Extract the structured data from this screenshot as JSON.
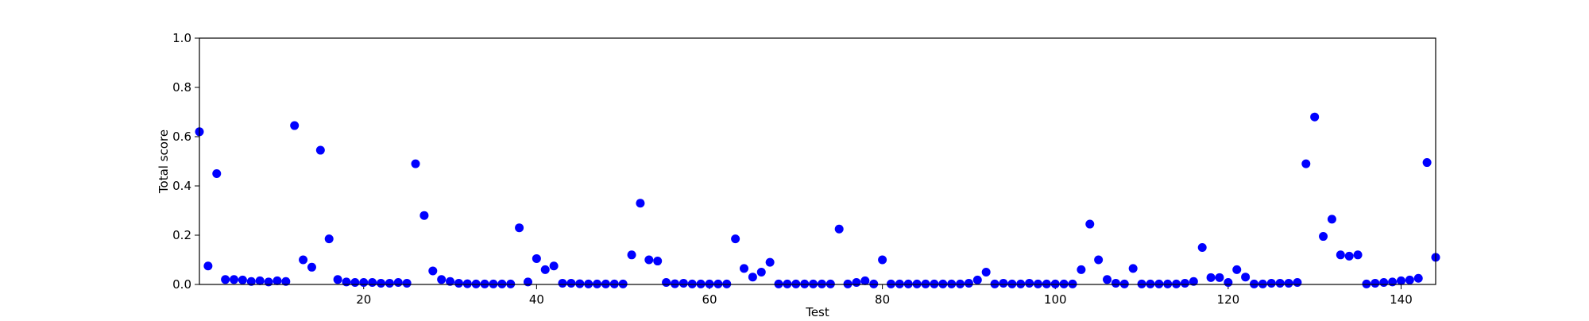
{
  "chart_data": {
    "type": "scatter",
    "title": "",
    "xlabel": "Test",
    "ylabel": "Total score",
    "xlim": [
      1,
      144
    ],
    "ylim": [
      0,
      1.0
    ],
    "xticks": [
      20,
      40,
      60,
      80,
      100,
      120,
      140
    ],
    "xtick_labels": [
      "20",
      "40",
      "60",
      "80",
      "100",
      "120",
      "140"
    ],
    "yticks": [
      0,
      0.2,
      0.4,
      0.6,
      0.8,
      1.0
    ],
    "ytick_labels": [
      "0.0",
      "0.2",
      "0.4",
      "0.6",
      "0.8",
      "1.0"
    ],
    "grid": false,
    "marker_color": "#0000ff",
    "series": [
      {
        "x": [
          1,
          2,
          3,
          4,
          5,
          6,
          7,
          8,
          9,
          10,
          11,
          12,
          13,
          14,
          15,
          16,
          17,
          18,
          19,
          20,
          21,
          22,
          23,
          24,
          25,
          26,
          27,
          28,
          29,
          30,
          31,
          32,
          33,
          34,
          35,
          36,
          37,
          38,
          39,
          40,
          41,
          42,
          43,
          44,
          45,
          46,
          47,
          48,
          49,
          50,
          51,
          52,
          53,
          54,
          55,
          56,
          57,
          58,
          59,
          60,
          61,
          62,
          63,
          64,
          65,
          66,
          67,
          68,
          69,
          70,
          71,
          72,
          73,
          74,
          75,
          76,
          77,
          78,
          79,
          80,
          81,
          82,
          83,
          84,
          85,
          86,
          87,
          88,
          89,
          90,
          91,
          92,
          93,
          94,
          95,
          96,
          97,
          98,
          99,
          100,
          101,
          102,
          103,
          104,
          105,
          106,
          107,
          108,
          109,
          110,
          111,
          112,
          113,
          114,
          115,
          116,
          117,
          118,
          119,
          120,
          121,
          122,
          123,
          124,
          125,
          126,
          127,
          128,
          129,
          130,
          131,
          132,
          133,
          134,
          135,
          136,
          137,
          138,
          139,
          140,
          141,
          142,
          143,
          144
        ],
        "y": [
          0.62,
          0.075,
          0.45,
          0.02,
          0.02,
          0.018,
          0.012,
          0.015,
          0.01,
          0.015,
          0.012,
          0.645,
          0.1,
          0.07,
          0.545,
          0.185,
          0.02,
          0.01,
          0.008,
          0.008,
          0.008,
          0.005,
          0.005,
          0.008,
          0.005,
          0.49,
          0.28,
          0.055,
          0.02,
          0.012,
          0.005,
          0.003,
          0.002,
          0.002,
          0.002,
          0.002,
          0.002,
          0.23,
          0.01,
          0.105,
          0.06,
          0.075,
          0.005,
          0.005,
          0.003,
          0.002,
          0.002,
          0.002,
          0.002,
          0.002,
          0.12,
          0.33,
          0.1,
          0.095,
          0.008,
          0.003,
          0.005,
          0.002,
          0.002,
          0.002,
          0.002,
          0.002,
          0.185,
          0.065,
          0.03,
          0.05,
          0.09,
          0.002,
          0.002,
          0.002,
          0.002,
          0.002,
          0.002,
          0.002,
          0.225,
          0.002,
          0.008,
          0.015,
          0.002,
          0.1,
          0.002,
          0.002,
          0.002,
          0.002,
          0.002,
          0.002,
          0.002,
          0.002,
          0.002,
          0.005,
          0.018,
          0.05,
          0.002,
          0.005,
          0.002,
          0.002,
          0.005,
          0.002,
          0.002,
          0.002,
          0.002,
          0.002,
          0.06,
          0.245,
          0.1,
          0.02,
          0.005,
          0.002,
          0.065,
          0.002,
          0.002,
          0.002,
          0.002,
          0.002,
          0.005,
          0.012,
          0.15,
          0.028,
          0.028,
          0.008,
          0.06,
          0.03,
          0.002,
          0.002,
          0.005,
          0.005,
          0.005,
          0.008,
          0.49,
          0.68,
          0.195,
          0.265,
          0.12,
          0.115,
          0.12,
          0.002,
          0.005,
          0.008,
          0.01,
          0.015,
          0.018,
          0.025,
          0.495,
          0.11
        ]
      }
    ]
  }
}
